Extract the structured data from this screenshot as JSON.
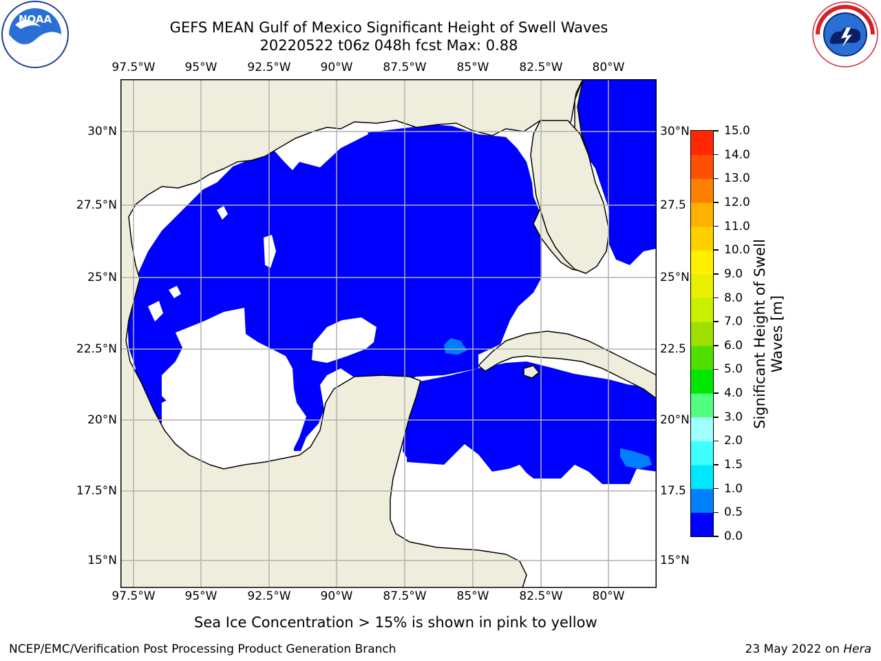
{
  "title": {
    "line1": "GEFS MEAN Gulf of Mexico Significant Height of Swell Waves",
    "line2": "20220522 t06z 048h fcst   Max: 0.88"
  },
  "map": {
    "lon_labels": [
      "97.5°W",
      "95°W",
      "92.5°W",
      "90°W",
      "87.5°W",
      "85°W",
      "82.5°W",
      "80°W"
    ],
    "lat_labels_left": [
      "30°N",
      "27.5°N",
      "25°N",
      "22.5°N",
      "20°N",
      "17.5°N",
      "15°N"
    ],
    "lat_labels_right": [
      "30°N",
      "27.5",
      "25°N",
      "22.5",
      "20°N",
      "17.5",
      "15°N"
    ],
    "colors": {
      "land": "#efeedc",
      "water_low": "#0000ff",
      "water_mid": "#0080ff",
      "grid": "#b0b0b0"
    }
  },
  "colorbar": {
    "title": "Significant Height of Swell Waves [m]",
    "ticks": [
      "0.0",
      "0.5",
      "1.0",
      "1.5",
      "2.0",
      "3.0",
      "4.0",
      "5.0",
      "6.0",
      "7.0",
      "8.0",
      "9.0",
      "10.0",
      "11.0",
      "12.0",
      "13.0",
      "14.0",
      "15.0"
    ],
    "colors": [
      "#0000ff",
      "#0080ff",
      "#00e8ff",
      "#40ffff",
      "#a0ffff",
      "#50ff80",
      "#00e800",
      "#50e000",
      "#a0e000",
      "#c8f000",
      "#e8f000",
      "#fff000",
      "#ffd000",
      "#ffb000",
      "#ff8000",
      "#ff5000",
      "#ff2800"
    ]
  },
  "note": "Sea Ice Concentration > 15% is shown in pink to yellow",
  "footer": {
    "left": "NCEP/EMC/Verification Post Processing Product Generation Branch",
    "right_prefix": "23 May 2022 on ",
    "right_host": "Hera"
  },
  "logos": {
    "noaa": "NOAA",
    "nws": "NATIONAL WEATHER SERVICE"
  }
}
